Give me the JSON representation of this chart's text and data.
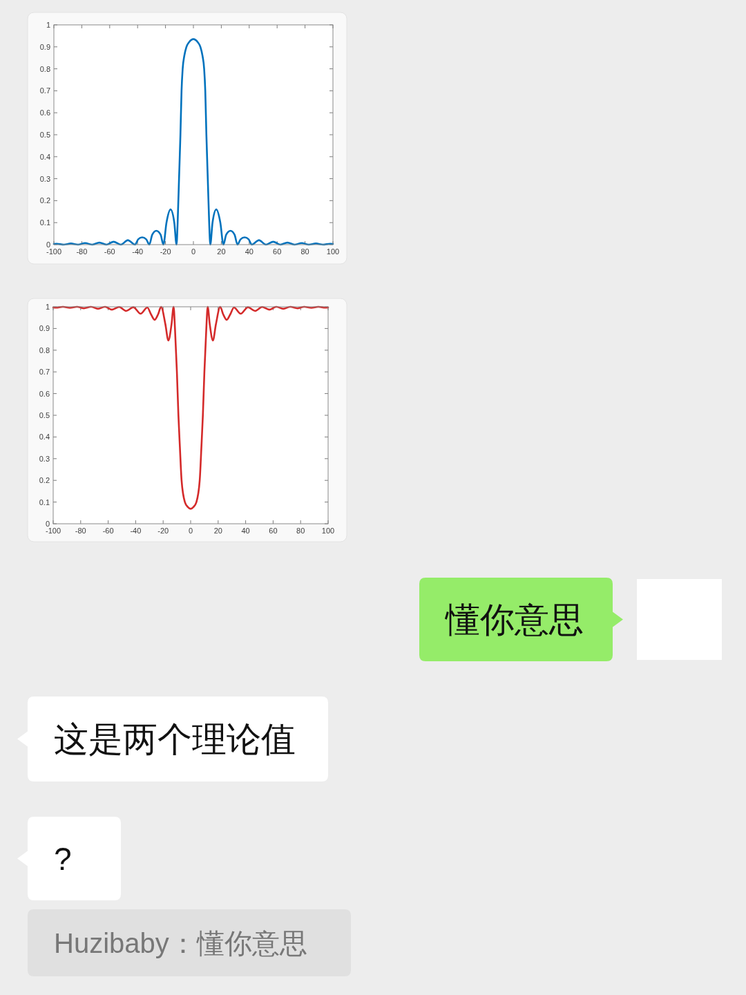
{
  "chart_data": [
    {
      "type": "line",
      "x": [
        -100,
        -98,
        -92.9,
        -87.8,
        -82.7,
        -77.6,
        -72.5,
        -67.4,
        -62.3,
        -57.2,
        -52,
        -47,
        -41.8,
        -39.6,
        -36.7,
        -33.8,
        -31.6,
        -29.5,
        -26.6,
        -23.5,
        -21.5,
        -19.3,
        -16.4,
        -13.7,
        -12.1,
        -11.3,
        -10.3,
        -9.3,
        -8.5,
        -7.7,
        -6.5,
        -5,
        -3,
        0,
        3,
        5,
        6.5,
        7.7,
        8.5,
        9.3,
        10.3,
        11.3,
        12.1,
        13.7,
        16.4,
        19.3,
        21.5,
        23.5,
        26.6,
        29.5,
        31.6,
        33.8,
        36.7,
        39.6,
        41.8,
        47,
        52,
        57.2,
        62.3,
        67.4,
        72.5,
        77.6,
        82.7,
        87.8,
        92.9,
        98,
        100
      ],
      "series": [
        {
          "color": "#0072bd",
          "values": [
            0.003,
            0.004,
            0,
            0.005,
            0,
            0.007,
            0,
            0.009,
            0,
            0.013,
            0,
            0.02,
            0,
            0.024,
            0.033,
            0.024,
            0,
            0.045,
            0.063,
            0.045,
            0,
            0.1,
            0.16,
            0.1,
            0,
            0.1,
            0.3,
            0.5,
            0.7,
            0.8,
            0.86,
            0.9,
            0.922,
            0.935,
            0.922,
            0.9,
            0.86,
            0.8,
            0.7,
            0.5,
            0.3,
            0.1,
            0,
            0.1,
            0.16,
            0.1,
            0,
            0.045,
            0.063,
            0.045,
            0,
            0.024,
            0.033,
            0.024,
            0,
            0.02,
            0,
            0.013,
            0,
            0.009,
            0,
            0.007,
            0,
            0.005,
            0,
            0.004,
            0.003
          ]
        }
      ],
      "xlim": [
        -100,
        100
      ],
      "ylim": [
        0,
        1
      ],
      "xticks": [
        -100,
        -80,
        -60,
        -40,
        -20,
        0,
        20,
        40,
        60,
        80,
        100
      ],
      "yticks": [
        0,
        0.1,
        0.2,
        0.3,
        0.4,
        0.5,
        0.6,
        0.7,
        0.8,
        0.9,
        1
      ]
    },
    {
      "type": "line",
      "x": [
        -100,
        -98,
        -92.9,
        -87.8,
        -82.7,
        -77.6,
        -72.5,
        -67.4,
        -62.3,
        -57.2,
        -52,
        -46.8,
        -41.7,
        -36.4,
        -31.5,
        -28.8,
        -26.2,
        -23.7,
        -21.5,
        -18.4,
        -16.2,
        -13.9,
        -12.4,
        -11.4,
        -10,
        -8.9,
        -7.8,
        -6.6,
        -4.2,
        -2,
        0,
        2,
        4.2,
        6.6,
        7.8,
        8.9,
        10,
        11.4,
        12.4,
        13.9,
        16.2,
        18.4,
        21.5,
        23.7,
        26.2,
        28.8,
        31.5,
        36.4,
        41.7,
        46.8,
        52,
        57.2,
        62.3,
        67.4,
        72.5,
        77.6,
        82.7,
        87.8,
        92.9,
        98,
        100
      ],
      "series": [
        {
          "color": "#d42a2a",
          "values": [
            0.997,
            0.996,
            1,
            0.995,
            1,
            0.993,
            1,
            0.991,
            1,
            0.987,
            0.999,
            0.981,
            0.998,
            0.968,
            0.997,
            0.965,
            0.94,
            0.965,
            1,
            0.92,
            0.845,
            0.92,
            1,
            0.9,
            0.7,
            0.5,
            0.35,
            0.2,
            0.1,
            0.077,
            0.069,
            0.077,
            0.1,
            0.2,
            0.35,
            0.5,
            0.7,
            0.9,
            1,
            0.92,
            0.845,
            0.92,
            1,
            0.965,
            0.94,
            0.965,
            0.997,
            0.968,
            0.998,
            0.981,
            0.999,
            0.987,
            1,
            0.991,
            1,
            0.993,
            1,
            0.995,
            1,
            0.996,
            0.997
          ]
        }
      ],
      "xlim": [
        -100,
        100
      ],
      "ylim": [
        0,
        1
      ],
      "xticks": [
        -100,
        -80,
        -60,
        -40,
        -20,
        0,
        20,
        40,
        60,
        80,
        100
      ],
      "yticks": [
        0,
        0.1,
        0.2,
        0.3,
        0.4,
        0.5,
        0.6,
        0.7,
        0.8,
        0.9,
        1
      ]
    },
    {
      "type": "other",
      "annotations": [
        "懂你意思",
        "这是两个理论值",
        "?",
        "Huzibaby：懂你意思"
      ]
    }
  ]
}
